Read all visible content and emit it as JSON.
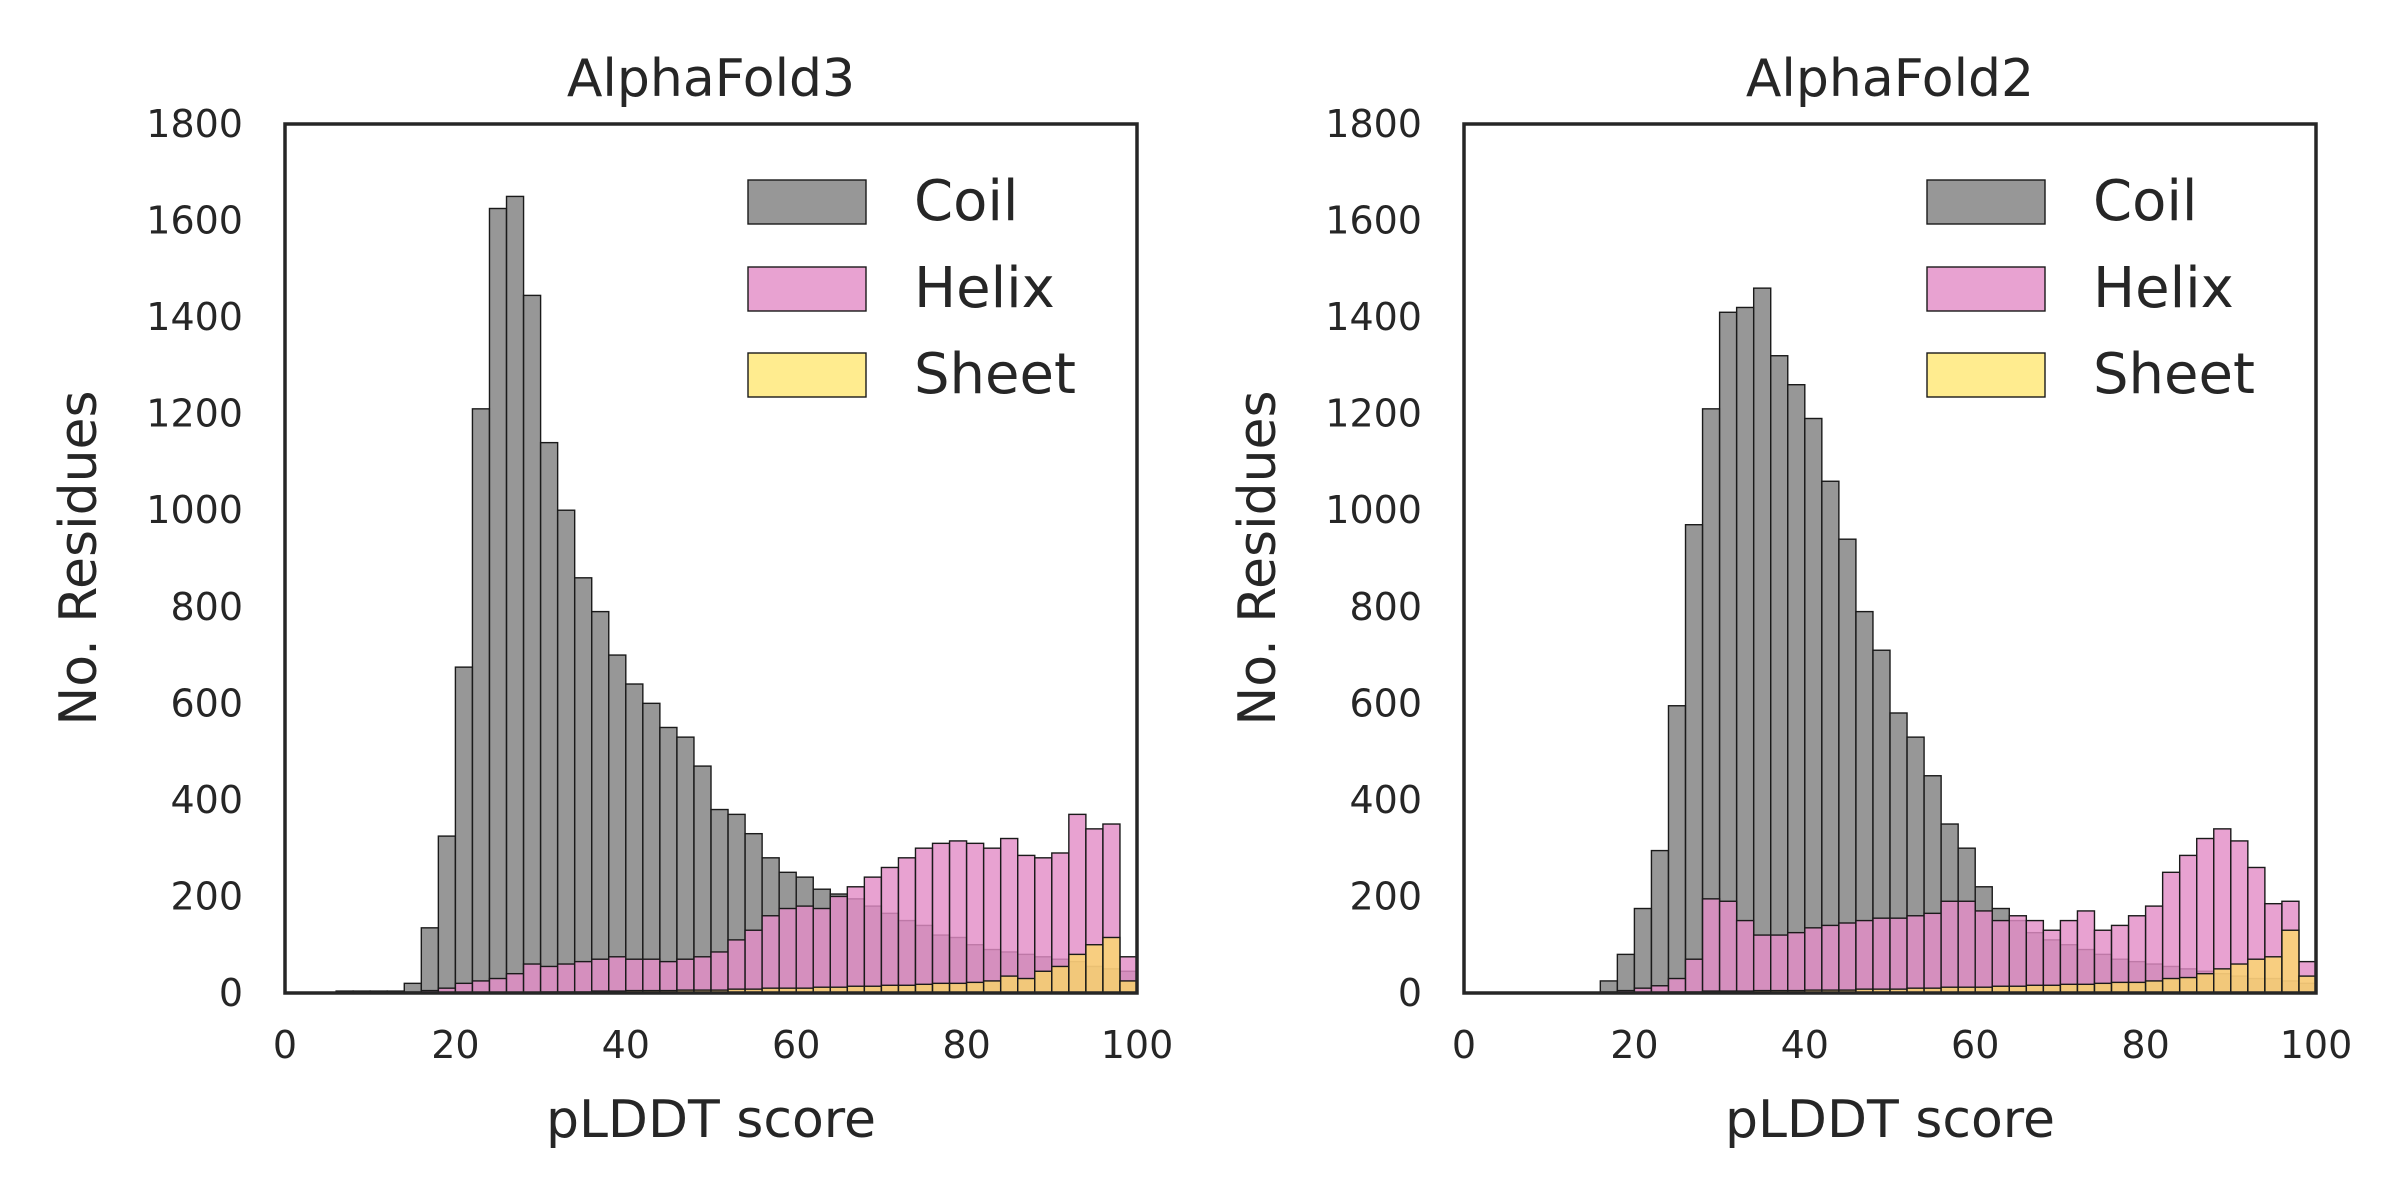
{
  "chart_data": [
    {
      "type": "bar",
      "title": "AlphaFold3",
      "xlabel": "pLDDT score",
      "ylabel": "No. Residues",
      "xlim": [
        0,
        100
      ],
      "ylim": [
        0,
        1800
      ],
      "xticks": [
        "0",
        "20",
        "40",
        "60",
        "80",
        "100"
      ],
      "yticks": [
        "0",
        "200",
        "400",
        "600",
        "800",
        "1000",
        "1200",
        "1400",
        "1600",
        "1800"
      ],
      "bin_width": 2,
      "bins_start": [
        0,
        2,
        4,
        6,
        8,
        10,
        12,
        14,
        16,
        18,
        20,
        22,
        24,
        26,
        28,
        30,
        32,
        34,
        36,
        38,
        40,
        42,
        44,
        46,
        48,
        50,
        52,
        54,
        56,
        58,
        60,
        62,
        64,
        66,
        68,
        70,
        72,
        74,
        76,
        78,
        80,
        82,
        84,
        86,
        88,
        90,
        92,
        94,
        96,
        98
      ],
      "series": [
        {
          "name": "Coil",
          "color": "#808080",
          "values": [
            0,
            0,
            0,
            4,
            4,
            4,
            4,
            20,
            135,
            325,
            675,
            1210,
            1625,
            1650,
            1445,
            1140,
            1000,
            860,
            790,
            700,
            640,
            600,
            550,
            530,
            470,
            380,
            370,
            330,
            280,
            250,
            240,
            215,
            205,
            195,
            180,
            165,
            150,
            140,
            120,
            115,
            100,
            90,
            85,
            80,
            75,
            70,
            65,
            55,
            50,
            45
          ]
        },
        {
          "name": "Helix",
          "color": "#e38ec7",
          "values": [
            0,
            0,
            0,
            0,
            0,
            0,
            0,
            2,
            5,
            10,
            20,
            25,
            30,
            40,
            60,
            55,
            60,
            65,
            70,
            75,
            70,
            70,
            65,
            70,
            75,
            85,
            110,
            130,
            160,
            175,
            180,
            175,
            200,
            220,
            240,
            260,
            280,
            300,
            310,
            315,
            310,
            300,
            320,
            285,
            280,
            290,
            370,
            340,
            350,
            75
          ]
        },
        {
          "name": "Sheet",
          "color": "#ffe35a",
          "values": [
            0,
            0,
            0,
            0,
            0,
            0,
            0,
            0,
            0,
            0,
            0,
            0,
            0,
            0,
            0,
            2,
            2,
            2,
            4,
            4,
            5,
            5,
            5,
            6,
            6,
            6,
            8,
            8,
            10,
            10,
            10,
            12,
            12,
            14,
            14,
            16,
            16,
            18,
            20,
            20,
            22,
            25,
            35,
            30,
            45,
            55,
            80,
            100,
            115,
            25
          ]
        }
      ]
    },
    {
      "type": "bar",
      "title": "AlphaFold2",
      "xlabel": "pLDDT score",
      "ylabel": "No. Residues",
      "xlim": [
        0,
        100
      ],
      "ylim": [
        0,
        1800
      ],
      "xticks": [
        "0",
        "20",
        "40",
        "60",
        "80",
        "100"
      ],
      "yticks": [
        "0",
        "200",
        "400",
        "600",
        "800",
        "1000",
        "1200",
        "1400",
        "1600",
        "1800"
      ],
      "bin_width": 2,
      "bins_start": [
        0,
        2,
        4,
        6,
        8,
        10,
        12,
        14,
        16,
        18,
        20,
        22,
        24,
        26,
        28,
        30,
        32,
        34,
        36,
        38,
        40,
        42,
        44,
        46,
        48,
        50,
        52,
        54,
        56,
        58,
        60,
        62,
        64,
        66,
        68,
        70,
        72,
        74,
        76,
        78,
        80,
        82,
        84,
        86,
        88,
        90,
        92,
        94,
        96,
        98
      ],
      "series": [
        {
          "name": "Coil",
          "color": "#808080",
          "values": [
            0,
            0,
            0,
            0,
            0,
            0,
            0,
            0,
            25,
            80,
            175,
            295,
            595,
            970,
            1210,
            1410,
            1420,
            1460,
            1320,
            1260,
            1190,
            1060,
            940,
            790,
            710,
            580,
            530,
            450,
            350,
            300,
            220,
            175,
            150,
            125,
            110,
            100,
            90,
            80,
            70,
            65,
            60,
            55,
            50,
            45,
            40,
            35,
            30,
            30,
            25,
            20
          ]
        },
        {
          "name": "Helix",
          "color": "#e38ec7",
          "values": [
            0,
            0,
            0,
            0,
            0,
            0,
            0,
            0,
            2,
            5,
            10,
            15,
            30,
            70,
            195,
            190,
            150,
            120,
            120,
            125,
            135,
            140,
            145,
            150,
            155,
            155,
            160,
            165,
            190,
            190,
            170,
            150,
            160,
            150,
            130,
            150,
            170,
            130,
            140,
            160,
            180,
            250,
            285,
            320,
            340,
            315,
            260,
            185,
            190,
            65
          ]
        },
        {
          "name": "Sheet",
          "color": "#ffe35a",
          "values": [
            0,
            0,
            0,
            0,
            0,
            0,
            0,
            0,
            0,
            0,
            0,
            0,
            2,
            2,
            4,
            4,
            4,
            5,
            5,
            5,
            6,
            6,
            6,
            8,
            8,
            8,
            10,
            10,
            12,
            12,
            12,
            14,
            14,
            16,
            16,
            18,
            18,
            20,
            22,
            22,
            25,
            30,
            32,
            40,
            50,
            60,
            70,
            75,
            130,
            35
          ]
        }
      ]
    }
  ]
}
